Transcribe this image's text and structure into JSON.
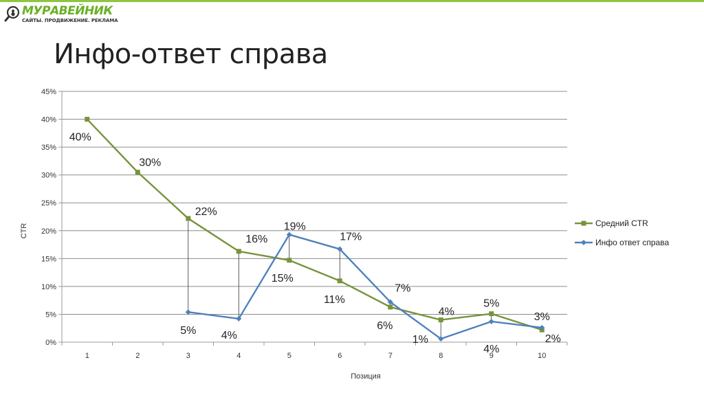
{
  "logo": {
    "name": "МУРАВЕЙНИК",
    "tagline": "САЙТЫ. ПРОДВИЖЕНИЕ. РЕКЛАМА",
    "icon": "magnifier-ant-icon",
    "brand_color": "#6ab023"
  },
  "slide": {
    "title": "Инфо-ответ справа",
    "accent_color": "#8dc63f"
  },
  "chart_data": {
    "type": "line",
    "categories": [
      "1",
      "2",
      "3",
      "4",
      "5",
      "6",
      "7",
      "8",
      "9",
      "10"
    ],
    "xlabel": "Позиция",
    "ylabel": "CTR",
    "ylim": [
      0,
      45
    ],
    "yticks": [
      "0%",
      "5%",
      "10%",
      "15%",
      "20%",
      "25%",
      "30%",
      "35%",
      "40%",
      "45%"
    ],
    "grid": true,
    "legend_position": "right",
    "series": [
      {
        "name": "Средний CTR",
        "color": "#77933c",
        "marker": "square",
        "values": [
          40,
          30.5,
          22.2,
          16.3,
          14.7,
          11,
          6.3,
          4,
          5.1,
          2.2
        ],
        "labels": [
          "40%",
          "30%",
          "22%",
          "16%",
          "15%",
          "11%",
          "6%",
          "4%",
          "5%",
          "2%"
        ]
      },
      {
        "name": "Инфо ответ справа",
        "color": "#4f81bd",
        "marker": "diamond",
        "values": [
          null,
          null,
          5.4,
          4.2,
          19.3,
          16.7,
          7.2,
          0.6,
          3.7,
          2.6
        ],
        "labels": [
          "",
          "",
          "5%",
          "4%",
          "19%",
          "17%",
          "7%",
          "1%",
          "4%",
          "3%"
        ]
      }
    ],
    "connectors_at": [
      "3",
      "4",
      "5",
      "6",
      "7",
      "8",
      "9"
    ]
  }
}
